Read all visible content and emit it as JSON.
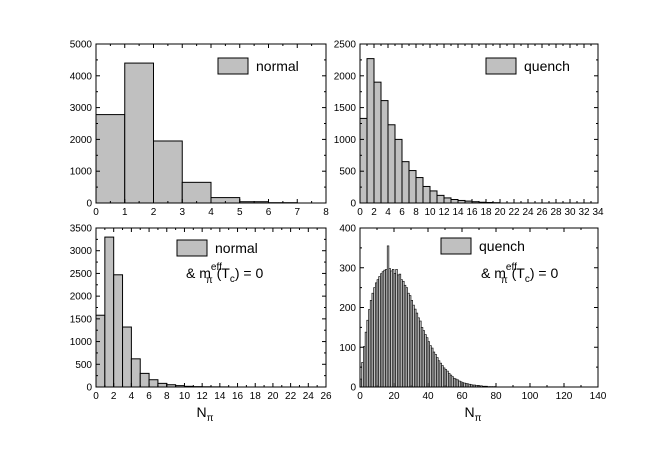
{
  "chart_data": [
    {
      "type": "bar",
      "panel": "top-left",
      "legend": "normal",
      "xlim": [
        0,
        8
      ],
      "ylim": [
        0,
        5000
      ],
      "bin_width": 1,
      "x": [
        0,
        1,
        2,
        3,
        4,
        5,
        6,
        7
      ],
      "values": [
        2780,
        4400,
        1950,
        650,
        170,
        40,
        10,
        0
      ],
      "xticks": [
        "0",
        "1",
        "2",
        "3",
        "4",
        "5",
        "6",
        "7",
        "8"
      ],
      "yticks": [
        "0",
        "1000",
        "2000",
        "3000",
        "4000",
        "5000"
      ]
    },
    {
      "type": "bar",
      "panel": "top-right",
      "legend": "quench",
      "xlim": [
        0,
        34
      ],
      "ylim": [
        0,
        2500
      ],
      "bin_width": 1,
      "x": [
        0,
        1,
        2,
        3,
        4,
        5,
        6,
        7,
        8,
        9,
        10,
        11,
        12,
        13,
        14,
        15,
        16,
        17,
        18,
        19
      ],
      "values": [
        1330,
        2270,
        1900,
        1610,
        1230,
        1000,
        650,
        510,
        400,
        260,
        190,
        120,
        80,
        55,
        40,
        30,
        20,
        12,
        8,
        5
      ],
      "xticks": [
        "0",
        "2",
        "4",
        "6",
        "8",
        "10",
        "12",
        "14",
        "16",
        "18",
        "20",
        "22",
        "24",
        "26",
        "28",
        "30",
        "32",
        "34"
      ],
      "yticks": [
        "0",
        "500",
        "1000",
        "1500",
        "2000",
        "2500"
      ]
    },
    {
      "type": "bar",
      "panel": "bottom-left",
      "legend": "normal",
      "annotation": {
        "prefix": "&",
        "symbol": "m",
        "sub": "π",
        "sup": "eff",
        "arg": "(T",
        "argsub": "c",
        "tail": ") = 0"
      },
      "xlabel": {
        "main": "N",
        "sub": "π"
      },
      "xlim": [
        0,
        26
      ],
      "ylim": [
        0,
        3500
      ],
      "bin_width": 1,
      "x": [
        0,
        1,
        2,
        3,
        4,
        5,
        6,
        7,
        8,
        9,
        10,
        11,
        12,
        13,
        14
      ],
      "values": [
        1580,
        3300,
        2470,
        1320,
        620,
        300,
        160,
        80,
        50,
        30,
        15,
        8,
        5,
        3,
        2
      ],
      "xticks": [
        "0",
        "2",
        "4",
        "6",
        "8",
        "10",
        "12",
        "14",
        "16",
        "18",
        "20",
        "22",
        "24",
        "26"
      ],
      "yticks": [
        "0",
        "500",
        "1000",
        "1500",
        "2000",
        "2500",
        "3000",
        "3500"
      ]
    },
    {
      "type": "bar",
      "panel": "bottom-right",
      "legend": "quench",
      "annotation": {
        "prefix": "&",
        "symbol": "m",
        "sub": "π",
        "sup": "eff",
        "arg": "(T",
        "argsub": "c",
        "tail": ") = 0"
      },
      "xlabel": {
        "main": "N",
        "sub": "π"
      },
      "xlim": [
        0,
        140
      ],
      "ylim": [
        0,
        400
      ],
      "bin_width": 1,
      "x_start": 0,
      "values": [
        20,
        62,
        102,
        138,
        168,
        195,
        218,
        236,
        250,
        262,
        270,
        278,
        285,
        290,
        294,
        296,
        355,
        298,
        292,
        296,
        286,
        296,
        282,
        284,
        270,
        266,
        256,
        250,
        236,
        230,
        218,
        206,
        196,
        186,
        174,
        166,
        150,
        142,
        132,
        124,
        114,
        104,
        98,
        88,
        82,
        74,
        66,
        60,
        54,
        48,
        44,
        40,
        34,
        30,
        26,
        22,
        20,
        18,
        15,
        13,
        11,
        10,
        9,
        8,
        7,
        6,
        5,
        5,
        4,
        4,
        3,
        3,
        2,
        2,
        2,
        1,
        1,
        1,
        1,
        1
      ],
      "xticks": [
        "0",
        "20",
        "40",
        "60",
        "80",
        "100",
        "120",
        "140"
      ],
      "yticks": [
        "0",
        "100",
        "200",
        "300",
        "400"
      ]
    }
  ],
  "colors": {
    "bar_fill": "#c0c0c0",
    "bar_stroke": "#000000",
    "axis": "#000000"
  }
}
